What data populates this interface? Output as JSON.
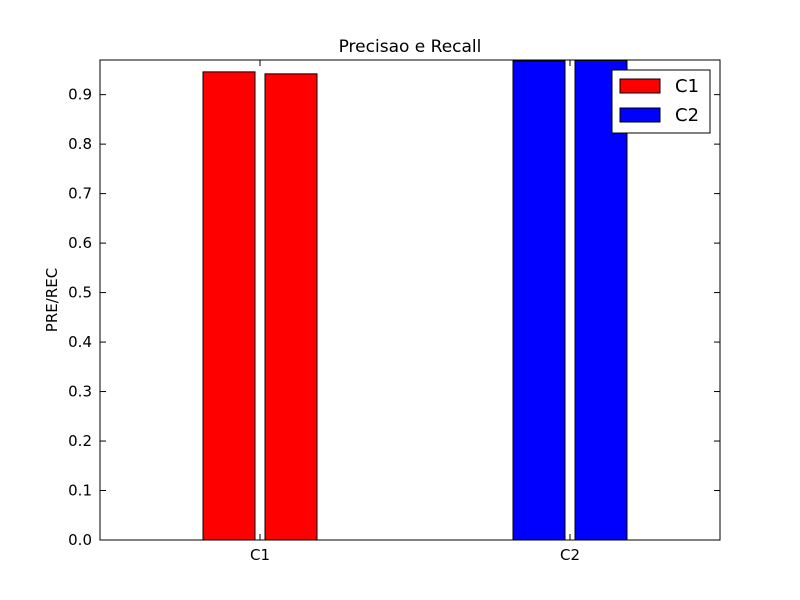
{
  "chart_data": {
    "type": "bar",
    "title": "Precisao e Recall",
    "xlabel": "",
    "ylabel": "PRE/REC",
    "categories": [
      "C1",
      "C2"
    ],
    "ylim": [
      0,
      0.97
    ],
    "yticks": [
      "0.0",
      "0.1",
      "0.2",
      "0.3",
      "0.4",
      "0.5",
      "0.6",
      "0.7",
      "0.8",
      "0.9"
    ],
    "grid": false,
    "legend_position": "top-right",
    "series": [
      {
        "name": "C1",
        "color": "#ff0000",
        "values": [
          0.946,
          0.942
        ]
      },
      {
        "name": "C2",
        "color": "#0000ff",
        "values": [
          0.968,
          0.969
        ]
      }
    ]
  }
}
